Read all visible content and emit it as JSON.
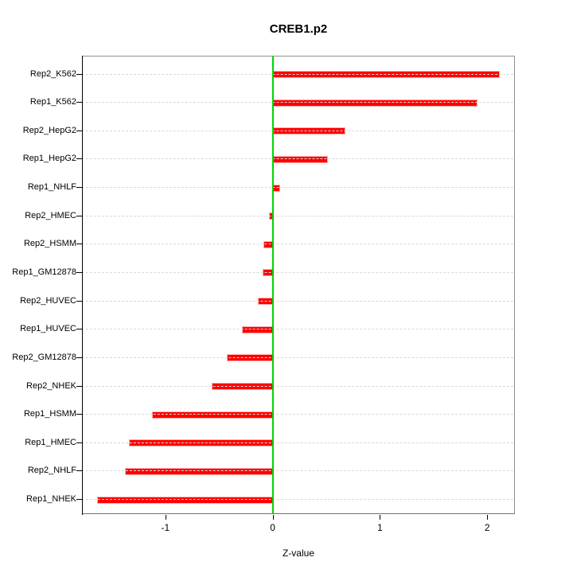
{
  "title": "CREB1.p2",
  "x_axis": {
    "label": "Z-value",
    "tick_labels": [
      "-1",
      "0",
      "1",
      "2"
    ],
    "tick_values": [
      -1,
      0,
      1,
      2
    ]
  },
  "colors": {
    "bar_fill": "#ff0000",
    "bar_border": "#ffa8a8",
    "zero_line": "#00d400",
    "grid_line": "#d9d9d9",
    "box_border": "#909090",
    "axis": "#000000",
    "background": "#ffffff"
  },
  "chart_data": {
    "type": "bar",
    "orientation": "horizontal",
    "title": "CREB1.p2",
    "xlabel": "Z-value",
    "ylabel": "",
    "xlim": [
      -1.778,
      2.258
    ],
    "grid": "dashed horizontal gridline per bar row, drawn across full plot width",
    "zero_line_color": "#00d400",
    "legend_position": "none",
    "categories_order": "top_to_bottom",
    "categories": [
      "Rep2_K562",
      "Rep1_K562",
      "Rep2_HepG2",
      "Rep1_HepG2",
      "Rep1_NHLF",
      "Rep2_HMEC",
      "Rep2_HSMM",
      "Rep1_GM12878",
      "Rep2_HUVEC",
      "Rep1_HUVEC",
      "Rep2_GM12878",
      "Rep2_NHEK",
      "Rep1_HSMM",
      "Rep1_HMEC",
      "Rep2_NHLF",
      "Rep1_NHEK"
    ],
    "values": [
      2.11,
      1.9,
      0.67,
      0.51,
      0.06,
      -0.03,
      -0.08,
      -0.09,
      -0.13,
      -0.28,
      -0.42,
      -0.56,
      -1.12,
      -1.33,
      -1.37,
      -1.63
    ]
  }
}
